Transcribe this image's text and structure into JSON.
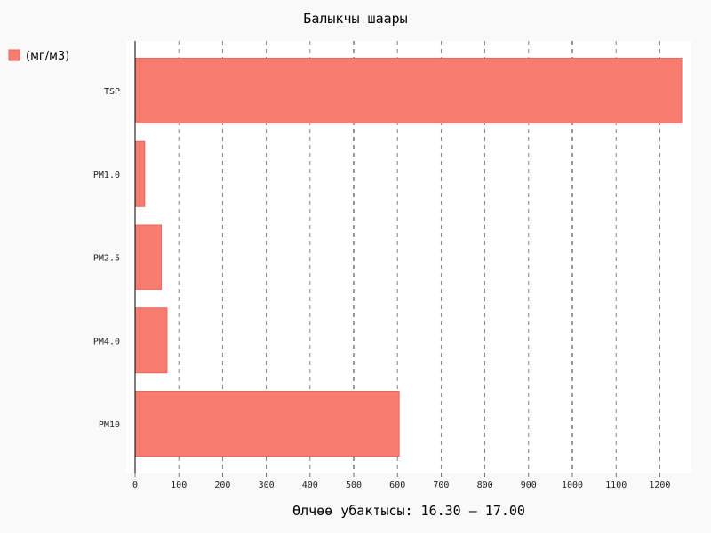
{
  "chart_data": {
    "type": "bar",
    "orientation": "horizontal",
    "title": "Балыкчы шаары",
    "xlabel": "Өлчөө убактысы: 16.30 – 17.00",
    "ylabel": "",
    "categories": [
      "TSP",
      "PM1.0",
      "PM2.5",
      "PM4.0",
      "PM10"
    ],
    "series": [
      {
        "name": "(мг/м3)",
        "values": [
          1250,
          22,
          60,
          73,
          604
        ]
      }
    ],
    "xlim": [
      0,
      1270
    ],
    "xticks": [
      0,
      100,
      200,
      300,
      400,
      500,
      600,
      700,
      800,
      900,
      1000,
      1100,
      1200
    ],
    "grid": true,
    "legend_position": "top-left",
    "colors": {
      "bar_fill": "#f87c70",
      "bar_stroke": "#e8665a",
      "plot_bg": "#ffffff",
      "page_bg": "#f9f9f9"
    }
  }
}
